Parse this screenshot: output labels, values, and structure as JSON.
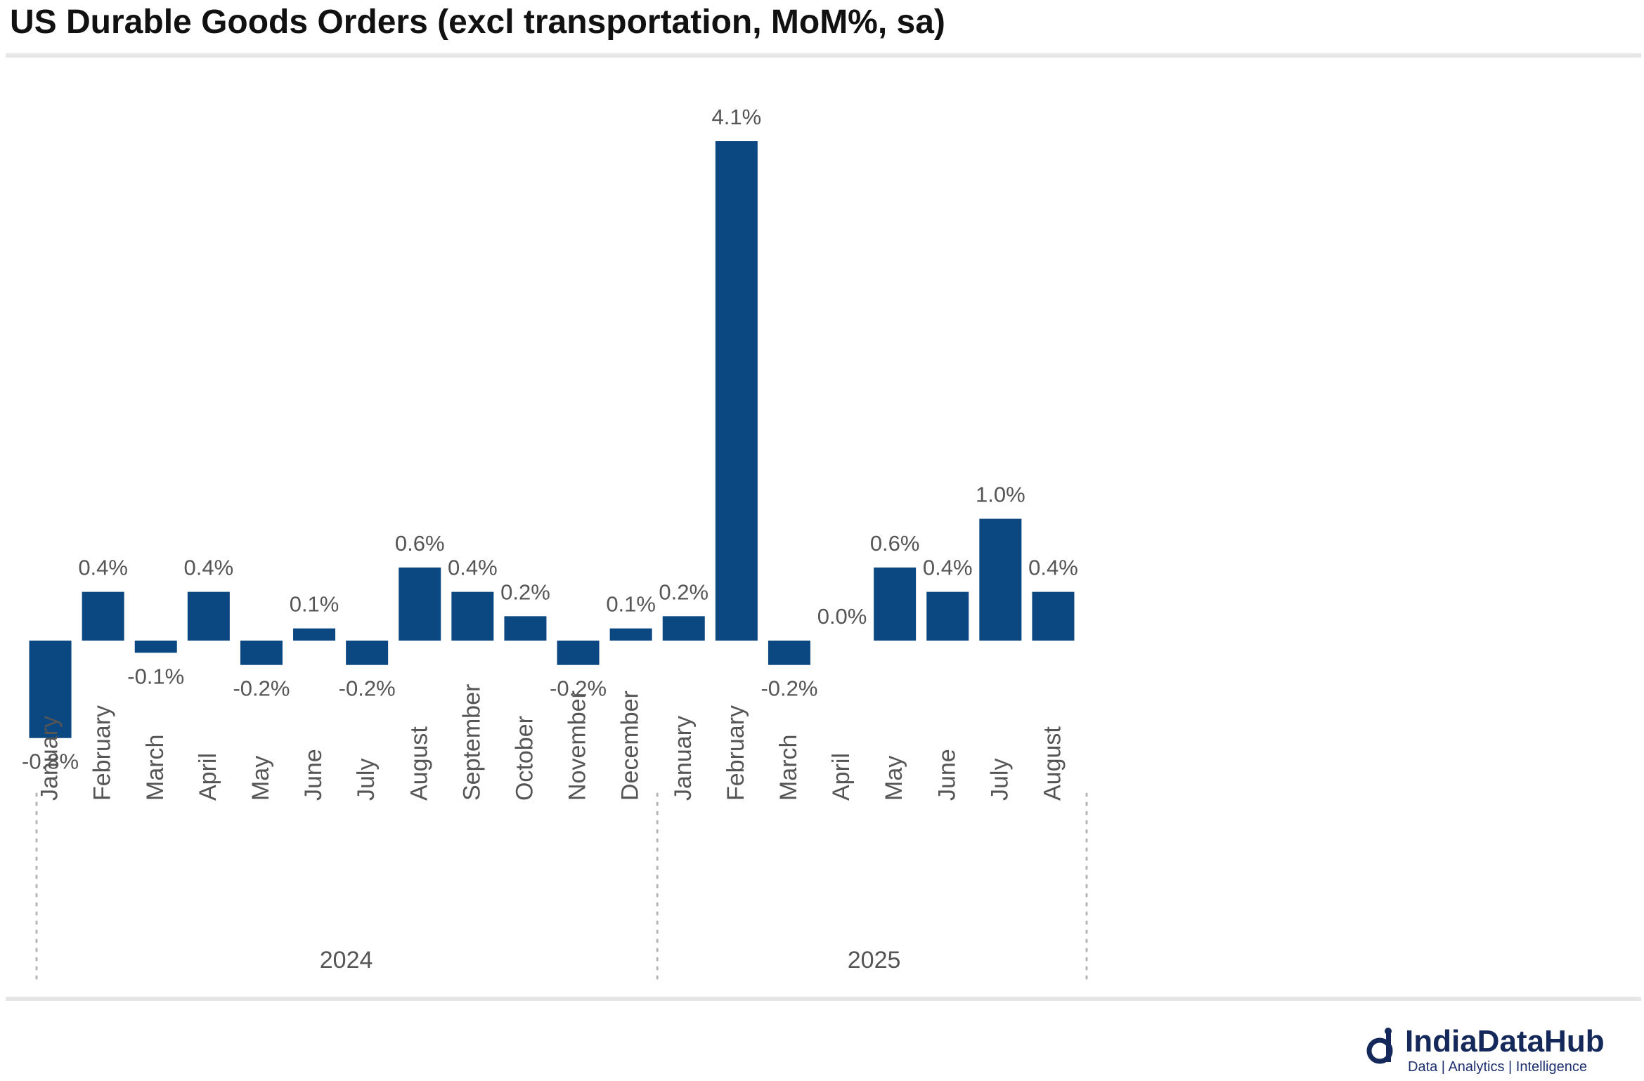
{
  "chart_data": {
    "type": "bar",
    "title": "US Durable Goods Orders (excl transportation, MoM%, sa)",
    "categories": [
      "January",
      "February",
      "March",
      "April",
      "May",
      "June",
      "July",
      "August",
      "September",
      "October",
      "November",
      "December",
      "January",
      "February",
      "March",
      "April",
      "May",
      "June",
      "July",
      "August"
    ],
    "values": [
      -0.8,
      0.4,
      -0.1,
      0.4,
      -0.2,
      0.1,
      -0.2,
      0.6,
      0.4,
      0.2,
      -0.2,
      0.1,
      0.2,
      4.1,
      -0.2,
      0.0,
      0.6,
      0.4,
      1.0,
      0.4
    ],
    "labels": [
      "-0.8%",
      "0.4%",
      "-0.1%",
      "0.4%",
      "-0.2%",
      "0.1%",
      "-0.2%",
      "0.6%",
      "0.4%",
      "0.2%",
      "-0.2%",
      "0.1%",
      "0.2%",
      "4.1%",
      "-0.2%",
      "0.0%",
      "0.6%",
      "0.4%",
      "1.0%",
      "0.4%"
    ],
    "groups": [
      {
        "label": "2024",
        "start": 0,
        "count": 12
      },
      {
        "label": "2025",
        "start": 12,
        "count": 8
      }
    ],
    "ylim": [
      -0.8,
      4.1
    ],
    "xlabel": "",
    "ylabel": "",
    "bar_color": "#0b4781",
    "label_color": "#555555",
    "grid": false,
    "legend": "none"
  },
  "brand": {
    "name": "IndiaDataHub",
    "tagline": "Data | Analytics | Intelligence",
    "color": "#14285a"
  }
}
